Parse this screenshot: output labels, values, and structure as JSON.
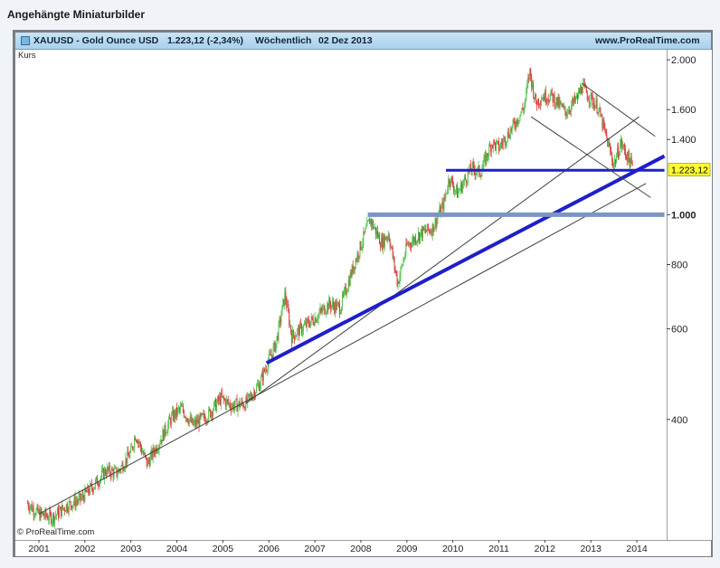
{
  "page_title": "Angehängte Miniaturbilder",
  "header": {
    "symbol": "XAUUSD - Gold Ounce USD",
    "price_change": "1.223,12 (-2,34%)",
    "period": "Wöchentlich",
    "date": "02 Dez 2013",
    "website": "www.ProRealTime.com"
  },
  "chart_label": "Kurs",
  "credit": "© ProRealTime.com",
  "chart_data": {
    "type": "candlestick",
    "y_scale": "log",
    "ylim": [
      240,
      2050
    ],
    "x_ticks": [
      "2001",
      "2002",
      "2003",
      "2004",
      "2005",
      "2006",
      "2007",
      "2008",
      "2009",
      "2010",
      "2011",
      "2012",
      "2013",
      "2014"
    ],
    "y_ticks": [
      "2.000",
      "1.600",
      "1.400",
      "1.000",
      "800",
      "600",
      "400"
    ],
    "y_tick_values": [
      2000,
      1600,
      1400,
      1000,
      800,
      600,
      400
    ],
    "bold_tick": "1.000",
    "last_price_label": "1.223,12",
    "last_price": 1223.12,
    "series": [
      {
        "values": [
          {
            "t": 2000.75,
            "v": 275
          },
          {
            "t": 2001.0,
            "v": 262
          },
          {
            "t": 2001.3,
            "v": 258
          },
          {
            "t": 2001.6,
            "v": 272
          },
          {
            "t": 2001.9,
            "v": 280
          },
          {
            "t": 2002.2,
            "v": 298
          },
          {
            "t": 2002.45,
            "v": 318
          },
          {
            "t": 2002.7,
            "v": 315
          },
          {
            "t": 2003.0,
            "v": 345
          },
          {
            "t": 2003.1,
            "v": 375
          },
          {
            "t": 2003.35,
            "v": 328
          },
          {
            "t": 2003.6,
            "v": 360
          },
          {
            "t": 2003.9,
            "v": 405
          },
          {
            "t": 2004.1,
            "v": 420
          },
          {
            "t": 2004.35,
            "v": 390
          },
          {
            "t": 2004.7,
            "v": 410
          },
          {
            "t": 2004.95,
            "v": 440
          },
          {
            "t": 2005.2,
            "v": 425
          },
          {
            "t": 2005.5,
            "v": 430
          },
          {
            "t": 2005.8,
            "v": 470
          },
          {
            "t": 2005.95,
            "v": 510
          },
          {
            "t": 2006.15,
            "v": 560
          },
          {
            "t": 2006.35,
            "v": 700
          },
          {
            "t": 2006.5,
            "v": 580
          },
          {
            "t": 2006.7,
            "v": 600
          },
          {
            "t": 2007.0,
            "v": 630
          },
          {
            "t": 2007.3,
            "v": 670
          },
          {
            "t": 2007.55,
            "v": 660
          },
          {
            "t": 2007.85,
            "v": 800
          },
          {
            "t": 2008.2,
            "v": 980
          },
          {
            "t": 2008.45,
            "v": 880
          },
          {
            "t": 2008.6,
            "v": 920
          },
          {
            "t": 2008.8,
            "v": 735
          },
          {
            "t": 2009.0,
            "v": 870
          },
          {
            "t": 2009.3,
            "v": 920
          },
          {
            "t": 2009.55,
            "v": 940
          },
          {
            "t": 2009.8,
            "v": 1050
          },
          {
            "t": 2009.92,
            "v": 1180
          },
          {
            "t": 2010.1,
            "v": 1100
          },
          {
            "t": 2010.4,
            "v": 1230
          },
          {
            "t": 2010.6,
            "v": 1210
          },
          {
            "t": 2010.85,
            "v": 1380
          },
          {
            "t": 2011.0,
            "v": 1350
          },
          {
            "t": 2011.3,
            "v": 1480
          },
          {
            "t": 2011.55,
            "v": 1620
          },
          {
            "t": 2011.67,
            "v": 1900
          },
          {
            "t": 2011.8,
            "v": 1650
          },
          {
            "t": 2011.95,
            "v": 1700
          },
          {
            "t": 2012.15,
            "v": 1700
          },
          {
            "t": 2012.45,
            "v": 1580
          },
          {
            "t": 2012.7,
            "v": 1680
          },
          {
            "t": 2012.8,
            "v": 1780
          },
          {
            "t": 2012.95,
            "v": 1700
          },
          {
            "t": 2013.15,
            "v": 1620
          },
          {
            "t": 2013.3,
            "v": 1450
          },
          {
            "t": 2013.5,
            "v": 1250
          },
          {
            "t": 2013.65,
            "v": 1380
          },
          {
            "t": 2013.75,
            "v": 1320
          },
          {
            "t": 2013.85,
            "v": 1270
          },
          {
            "t": 2013.92,
            "v": 1223
          }
        ]
      }
    ],
    "trendlines": [
      {
        "color": "#404040",
        "width": 1,
        "from": {
          "t": 2001.0,
          "v": 262
        },
        "to": {
          "t": 2014.2,
          "v": 1150
        }
      },
      {
        "color": "#404040",
        "width": 1,
        "from": {
          "t": 2005.5,
          "v": 430
        },
        "to": {
          "t": 2014.05,
          "v": 1550
        }
      },
      {
        "color": "#1f1fc8",
        "width": 4,
        "from": {
          "t": 2005.95,
          "v": 515
        },
        "to": {
          "t": 2014.6,
          "v": 1300
        }
      },
      {
        "color": "#1f1fc8",
        "width": 3,
        "from": {
          "t": 2009.85,
          "v": 1220
        },
        "to": {
          "t": 2014.6,
          "v": 1220
        }
      },
      {
        "color": "#7c95c4",
        "width": 5,
        "from": {
          "t": 2008.15,
          "v": 1000
        },
        "to": {
          "t": 2014.6,
          "v": 1000
        }
      },
      {
        "color": "#404040",
        "width": 1,
        "from": {
          "t": 2012.8,
          "v": 1800
        },
        "to": {
          "t": 2014.4,
          "v": 1420
        }
      },
      {
        "color": "#404040",
        "width": 1,
        "from": {
          "t": 2011.7,
          "v": 1550
        },
        "to": {
          "t": 2014.3,
          "v": 1080
        }
      }
    ]
  }
}
